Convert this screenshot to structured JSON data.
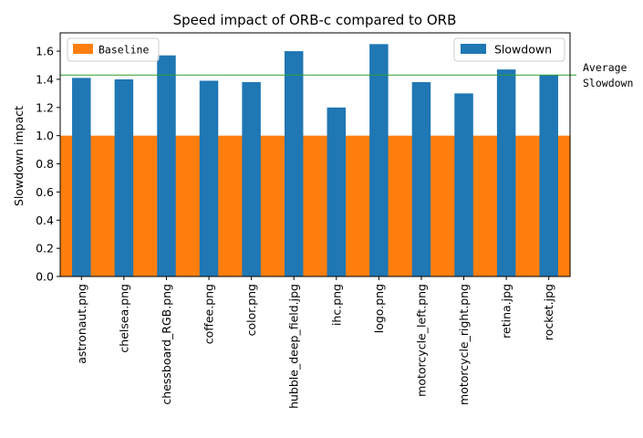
{
  "chart_data": {
    "type": "bar",
    "title": "Speed impact of ORB-c compared to ORB",
    "xlabel": "",
    "ylabel": "Slowdown impact",
    "categories": [
      "astronaut.png",
      "chelsea.png",
      "chessboard_RGB.png",
      "coffee.png",
      "color.png",
      "hubble_deep_field.jpg",
      "ihc.png",
      "logo.png",
      "motorcycle_left.png",
      "motorcycle_right.png",
      "retina.jpg",
      "rocket.jpg"
    ],
    "series": [
      {
        "name": "Baseline",
        "color": "#ff7f0e",
        "values": [
          1,
          1,
          1,
          1,
          1,
          1,
          1,
          1,
          1,
          1,
          1,
          1
        ]
      },
      {
        "name": "Slowdown",
        "color": "#1f77b4",
        "values": [
          1.41,
          1.4,
          1.57,
          1.39,
          1.38,
          1.6,
          1.2,
          1.65,
          1.38,
          1.3,
          1.47,
          1.43
        ]
      }
    ],
    "average": {
      "value": 1.43,
      "color": "#2ca02c",
      "label_lines": [
        "Average",
        "Slowdown"
      ]
    },
    "ylim": [
      0,
      1.73
    ],
    "yticks": [
      0.0,
      0.2,
      0.4,
      0.6,
      0.8,
      1.0,
      1.2,
      1.4,
      1.6
    ],
    "ytick_labels": [
      "0.0",
      "0.2",
      "0.4",
      "0.6",
      "0.8",
      "1.0",
      "1.2",
      "1.4",
      "1.6"
    ],
    "grid": false,
    "legends": [
      {
        "placement": "top-left",
        "entries": [
          "Baseline"
        ]
      },
      {
        "placement": "top-right",
        "entries": [
          "Slowdown"
        ]
      }
    ]
  }
}
